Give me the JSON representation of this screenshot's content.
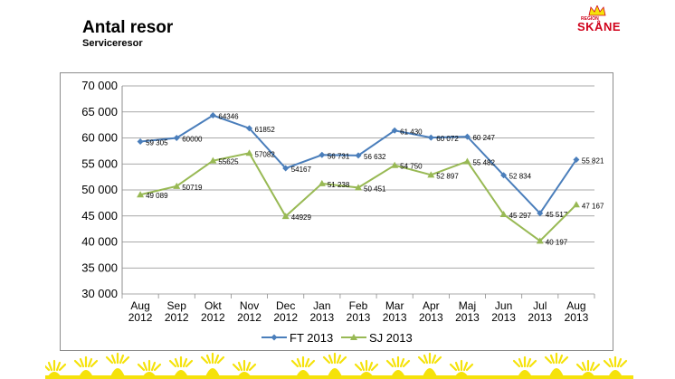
{
  "header": {
    "title": "Antal resor",
    "subtitle": "Serviceresor"
  },
  "logo": {
    "small_text": "REGION",
    "name": "SKÅNE",
    "color": "#d0021b",
    "accent": "#f5e20a"
  },
  "chart_data": {
    "type": "line",
    "categories": [
      [
        "Aug",
        "2012"
      ],
      [
        "Sep",
        "2012"
      ],
      [
        "Okt",
        "2012"
      ],
      [
        "Nov",
        "2012"
      ],
      [
        "Dec",
        "2012"
      ],
      [
        "Jan",
        "2013"
      ],
      [
        "Feb",
        "2013"
      ],
      [
        "Mar",
        "2013"
      ],
      [
        "Apr",
        "2013"
      ],
      [
        "Maj",
        "2013"
      ],
      [
        "Jun",
        "2013"
      ],
      [
        "Jul",
        "2013"
      ],
      [
        "Aug",
        "2013"
      ]
    ],
    "ylim": [
      30000,
      70000
    ],
    "yticks": [
      30000,
      35000,
      40000,
      45000,
      50000,
      55000,
      60000,
      65000,
      70000
    ],
    "ytick_labels": [
      "30 000",
      "35 000",
      "40 000",
      "45 000",
      "50 000",
      "55 000",
      "60 000",
      "65 000",
      "70 000"
    ],
    "grid": true,
    "legend_position": "bottom",
    "series": [
      {
        "name": "FT 2013",
        "color": "#4a7ebb",
        "marker": "diamond",
        "values": [
          59305,
          60000,
          64346,
          61852,
          54167,
          56731,
          56632,
          61430,
          60072,
          60247,
          52834,
          45517,
          55821
        ],
        "labels": [
          "59 305",
          "60000",
          "64346",
          "61852",
          "54167",
          "56 731",
          "56 632",
          "61 430",
          "60 072",
          "60 247",
          "52 834",
          "45 517",
          "55 821"
        ]
      },
      {
        "name": "SJ 2013",
        "color": "#98b954",
        "marker": "triangle",
        "values": [
          49089,
          50719,
          55625,
          57082,
          44929,
          51238,
          50451,
          54750,
          52897,
          55482,
          45297,
          40197,
          47167
        ],
        "labels": [
          "49 089",
          "50719",
          "55625",
          "57082",
          "44929",
          "51 238",
          "50 451",
          "54 750",
          "52 897",
          "55 482",
          "45 297",
          "40 197",
          "47 167"
        ]
      }
    ]
  }
}
